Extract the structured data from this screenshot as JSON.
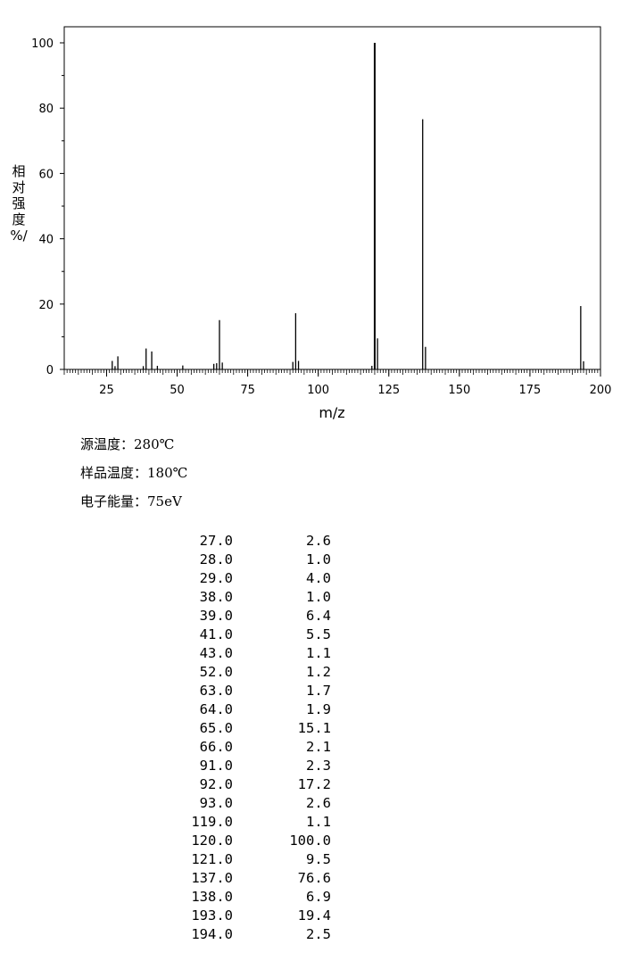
{
  "chart_data": {
    "type": "bar",
    "title": "",
    "xlabel": "m/z",
    "ylabel": [
      "相",
      "对",
      "强",
      "度",
      "%/"
    ],
    "xlim": [
      10,
      200
    ],
    "ylim": [
      0,
      105
    ],
    "x_ticks": [
      25,
      50,
      75,
      100,
      125,
      150,
      175,
      200
    ],
    "y_ticks": [
      0,
      20,
      40,
      60,
      80,
      100
    ],
    "x": [
      27.0,
      28.0,
      29.0,
      38.0,
      39.0,
      41.0,
      43.0,
      52.0,
      63.0,
      64.0,
      65.0,
      66.0,
      91.0,
      92.0,
      93.0,
      119.0,
      120.0,
      121.0,
      137.0,
      138.0,
      193.0,
      194.0
    ],
    "values": [
      2.6,
      1.0,
      4.0,
      1.0,
      6.4,
      5.5,
      1.1,
      1.2,
      1.7,
      1.9,
      15.1,
      2.1,
      2.3,
      17.2,
      2.6,
      1.1,
      100.0,
      9.5,
      76.6,
      6.9,
      19.4,
      2.5
    ],
    "grid": false
  },
  "conditions": [
    "源温度：280℃",
    "样品温度：180℃",
    "电子能量：75eV"
  ],
  "peak_table": [
    {
      "mz": "27.0",
      "intensity": "2.6"
    },
    {
      "mz": "28.0",
      "intensity": "1.0"
    },
    {
      "mz": "29.0",
      "intensity": "4.0"
    },
    {
      "mz": "38.0",
      "intensity": "1.0"
    },
    {
      "mz": "39.0",
      "intensity": "6.4"
    },
    {
      "mz": "41.0",
      "intensity": "5.5"
    },
    {
      "mz": "43.0",
      "intensity": "1.1"
    },
    {
      "mz": "52.0",
      "intensity": "1.2"
    },
    {
      "mz": "63.0",
      "intensity": "1.7"
    },
    {
      "mz": "64.0",
      "intensity": "1.9"
    },
    {
      "mz": "65.0",
      "intensity": "15.1"
    },
    {
      "mz": "66.0",
      "intensity": "2.1"
    },
    {
      "mz": "91.0",
      "intensity": "2.3"
    },
    {
      "mz": "92.0",
      "intensity": "17.2"
    },
    {
      "mz": "93.0",
      "intensity": "2.6"
    },
    {
      "mz": "119.0",
      "intensity": "1.1"
    },
    {
      "mz": "120.0",
      "intensity": "100.0"
    },
    {
      "mz": "121.0",
      "intensity": "9.5"
    },
    {
      "mz": "137.0",
      "intensity": "76.6"
    },
    {
      "mz": "138.0",
      "intensity": "6.9"
    },
    {
      "mz": "193.0",
      "intensity": "19.4"
    },
    {
      "mz": "194.0",
      "intensity": "2.5"
    }
  ]
}
